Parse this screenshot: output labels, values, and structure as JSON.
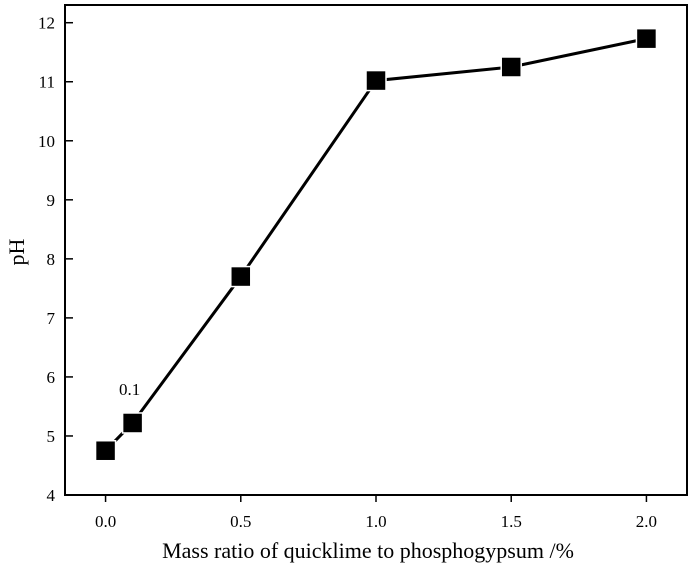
{
  "chart_data": {
    "type": "line",
    "title": "",
    "xlabel": "Mass ratio of quicklime to phosphogypsum /%",
    "ylabel": "pH",
    "xlim": [
      -0.15,
      2.15
    ],
    "ylim": [
      4,
      12.3
    ],
    "x_ticks": [
      0.0,
      0.5,
      1.0,
      1.5,
      2.0
    ],
    "x_tick_labels": [
      "0.0",
      "0.5",
      "1.0",
      "1.5",
      "2.0"
    ],
    "y_ticks": [
      4,
      5,
      6,
      7,
      8,
      9,
      10,
      11,
      12
    ],
    "y_tick_labels": [
      "4",
      "5",
      "6",
      "7",
      "8",
      "9",
      "10",
      "11",
      "12"
    ],
    "grid": false,
    "legend": false,
    "series": [
      {
        "x": [
          0.0,
          0.1,
          0.5,
          1.0,
          1.5,
          2.0
        ],
        "y": [
          4.75,
          5.22,
          7.7,
          11.02,
          11.25,
          11.73
        ],
        "marker": "square",
        "color": "#000000"
      }
    ],
    "annotations": [
      {
        "text": "0.1",
        "x": 0.1,
        "y": 5.22
      }
    ]
  }
}
